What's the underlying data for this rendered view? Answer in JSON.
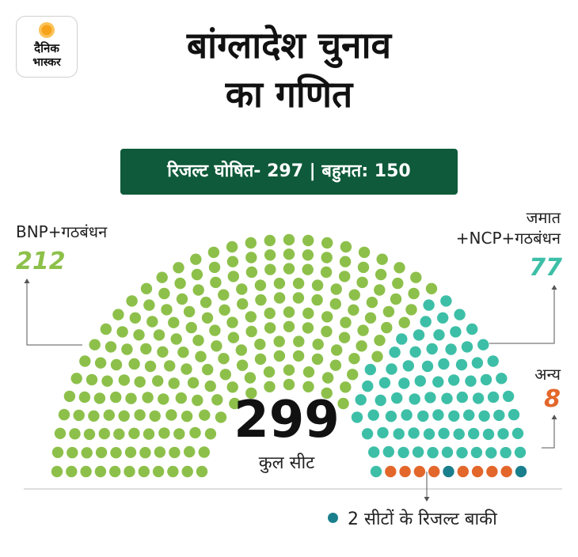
{
  "logo": {
    "line1": "दैनिक",
    "line2": "भास्कर"
  },
  "title": {
    "line1": "बांग्लादेश चुनाव",
    "line2": "का गणित"
  },
  "banner": "रिजल्ट घोषित- 297 | बहुमत: 150",
  "total": {
    "value": "299",
    "label": "कुल सीट"
  },
  "pending_note": "2 सीटों के रिजल्ट बाकी",
  "colors": {
    "bnp": "#8dc04a",
    "jamaat": "#3dbfa7",
    "others": "#e3672b",
    "pending": "#1a7f8c",
    "banner": "#0e5a3a"
  },
  "chart_data": {
    "type": "parliament",
    "total_seats": 299,
    "declared": 297,
    "majority": 150,
    "series": [
      {
        "name": "BNP+गठबंधन",
        "value": 212,
        "label": "212"
      },
      {
        "name": "जमात +NCP+गठबंधन",
        "name_line1": "जमात",
        "name_line2": "+NCP+गठबंधन",
        "value": 77,
        "label": "77"
      },
      {
        "name": "अन्य",
        "value": 8,
        "label": "8"
      },
      {
        "name": "2 सीटों के रिजल्ट बाकी",
        "value": 2
      }
    ]
  }
}
